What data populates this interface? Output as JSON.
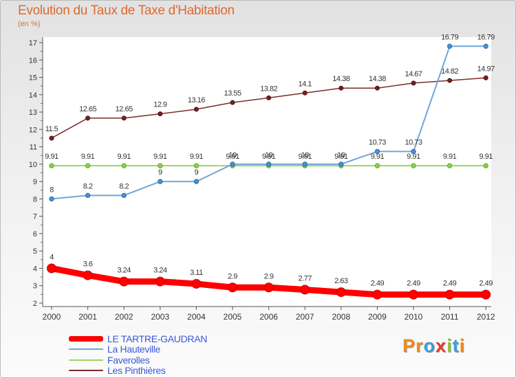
{
  "title": "Evolution du Taux de Taxe d'Habitation",
  "unit_label": "(en %)",
  "brand": {
    "text": "Proxiti",
    "letter_colors": [
      "#f28a1c",
      "#f28a1c",
      "#3aa0d8",
      "#e63c2e",
      "#8cc63f",
      "#3aa0d8",
      "#f28a1c"
    ]
  },
  "chart_data": {
    "type": "line",
    "title": "Evolution du Taux de Taxe d'Habitation",
    "ylabel": "(en %)",
    "xlabel": "",
    "x": [
      "2000",
      "2001",
      "2002",
      "2003",
      "2004",
      "2005",
      "2006",
      "2007",
      "2008",
      "2009",
      "2010",
      "2011",
      "2012"
    ],
    "ylim": [
      2,
      17
    ],
    "yticks": [
      "2",
      "3",
      "4",
      "5",
      "6",
      "7",
      "8",
      "9",
      "10",
      "11",
      "12",
      "13",
      "14",
      "15",
      "16",
      "17"
    ],
    "grid": false,
    "legend_position": "bottom-left",
    "series": [
      {
        "name": "LE TARTRE-GAUDRAN",
        "color": "#ff0000",
        "values": [
          4,
          3.6,
          3.24,
          3.24,
          3.11,
          2.9,
          2.9,
          2.77,
          2.63,
          2.49,
          2.49,
          2.49,
          2.49
        ],
        "labels": [
          "4",
          "3.6",
          "3.24",
          "3.24",
          "3.11",
          "2.9",
          "2.9",
          "2.77",
          "2.63",
          "2.49",
          "2.49",
          "2.49",
          "2.49"
        ]
      },
      {
        "name": "La Hauteville",
        "color": "#6ea6d8",
        "values": [
          8,
          8.2,
          8.2,
          9,
          9,
          10,
          10,
          10,
          10,
          10.73,
          10.73,
          16.79,
          16.79
        ],
        "labels": [
          "8",
          "8.2",
          "8.2",
          "9",
          "9",
          "10",
          "10",
          "10",
          "10",
          "10.73",
          "10.73",
          "16.79",
          "16.79"
        ]
      },
      {
        "name": "Faverolles",
        "color": "#9ad46a",
        "values": [
          9.91,
          9.91,
          9.91,
          9.91,
          9.91,
          9.91,
          9.91,
          9.91,
          9.91,
          9.91,
          9.91,
          9.91,
          9.91
        ],
        "labels": [
          "9.91",
          "9.91",
          "9.91",
          "9.91",
          "9.91",
          "9.91",
          "9.91",
          "9.91",
          "9.91",
          "9.91",
          "9.91",
          "9.91",
          "9.91"
        ]
      },
      {
        "name": "Les Pinthières",
        "color": "#7a2a2a",
        "values": [
          11.5,
          12.65,
          12.65,
          12.9,
          13.16,
          13.55,
          13.82,
          14.1,
          14.38,
          14.38,
          14.67,
          14.82,
          14.97
        ],
        "labels": [
          "11.5",
          "12.65",
          "12.65",
          "12.9",
          "13.16",
          "13.55",
          "13.82",
          "14.1",
          "14.38",
          "14.38",
          "14.67",
          "14.82",
          "14.97"
        ]
      }
    ]
  }
}
